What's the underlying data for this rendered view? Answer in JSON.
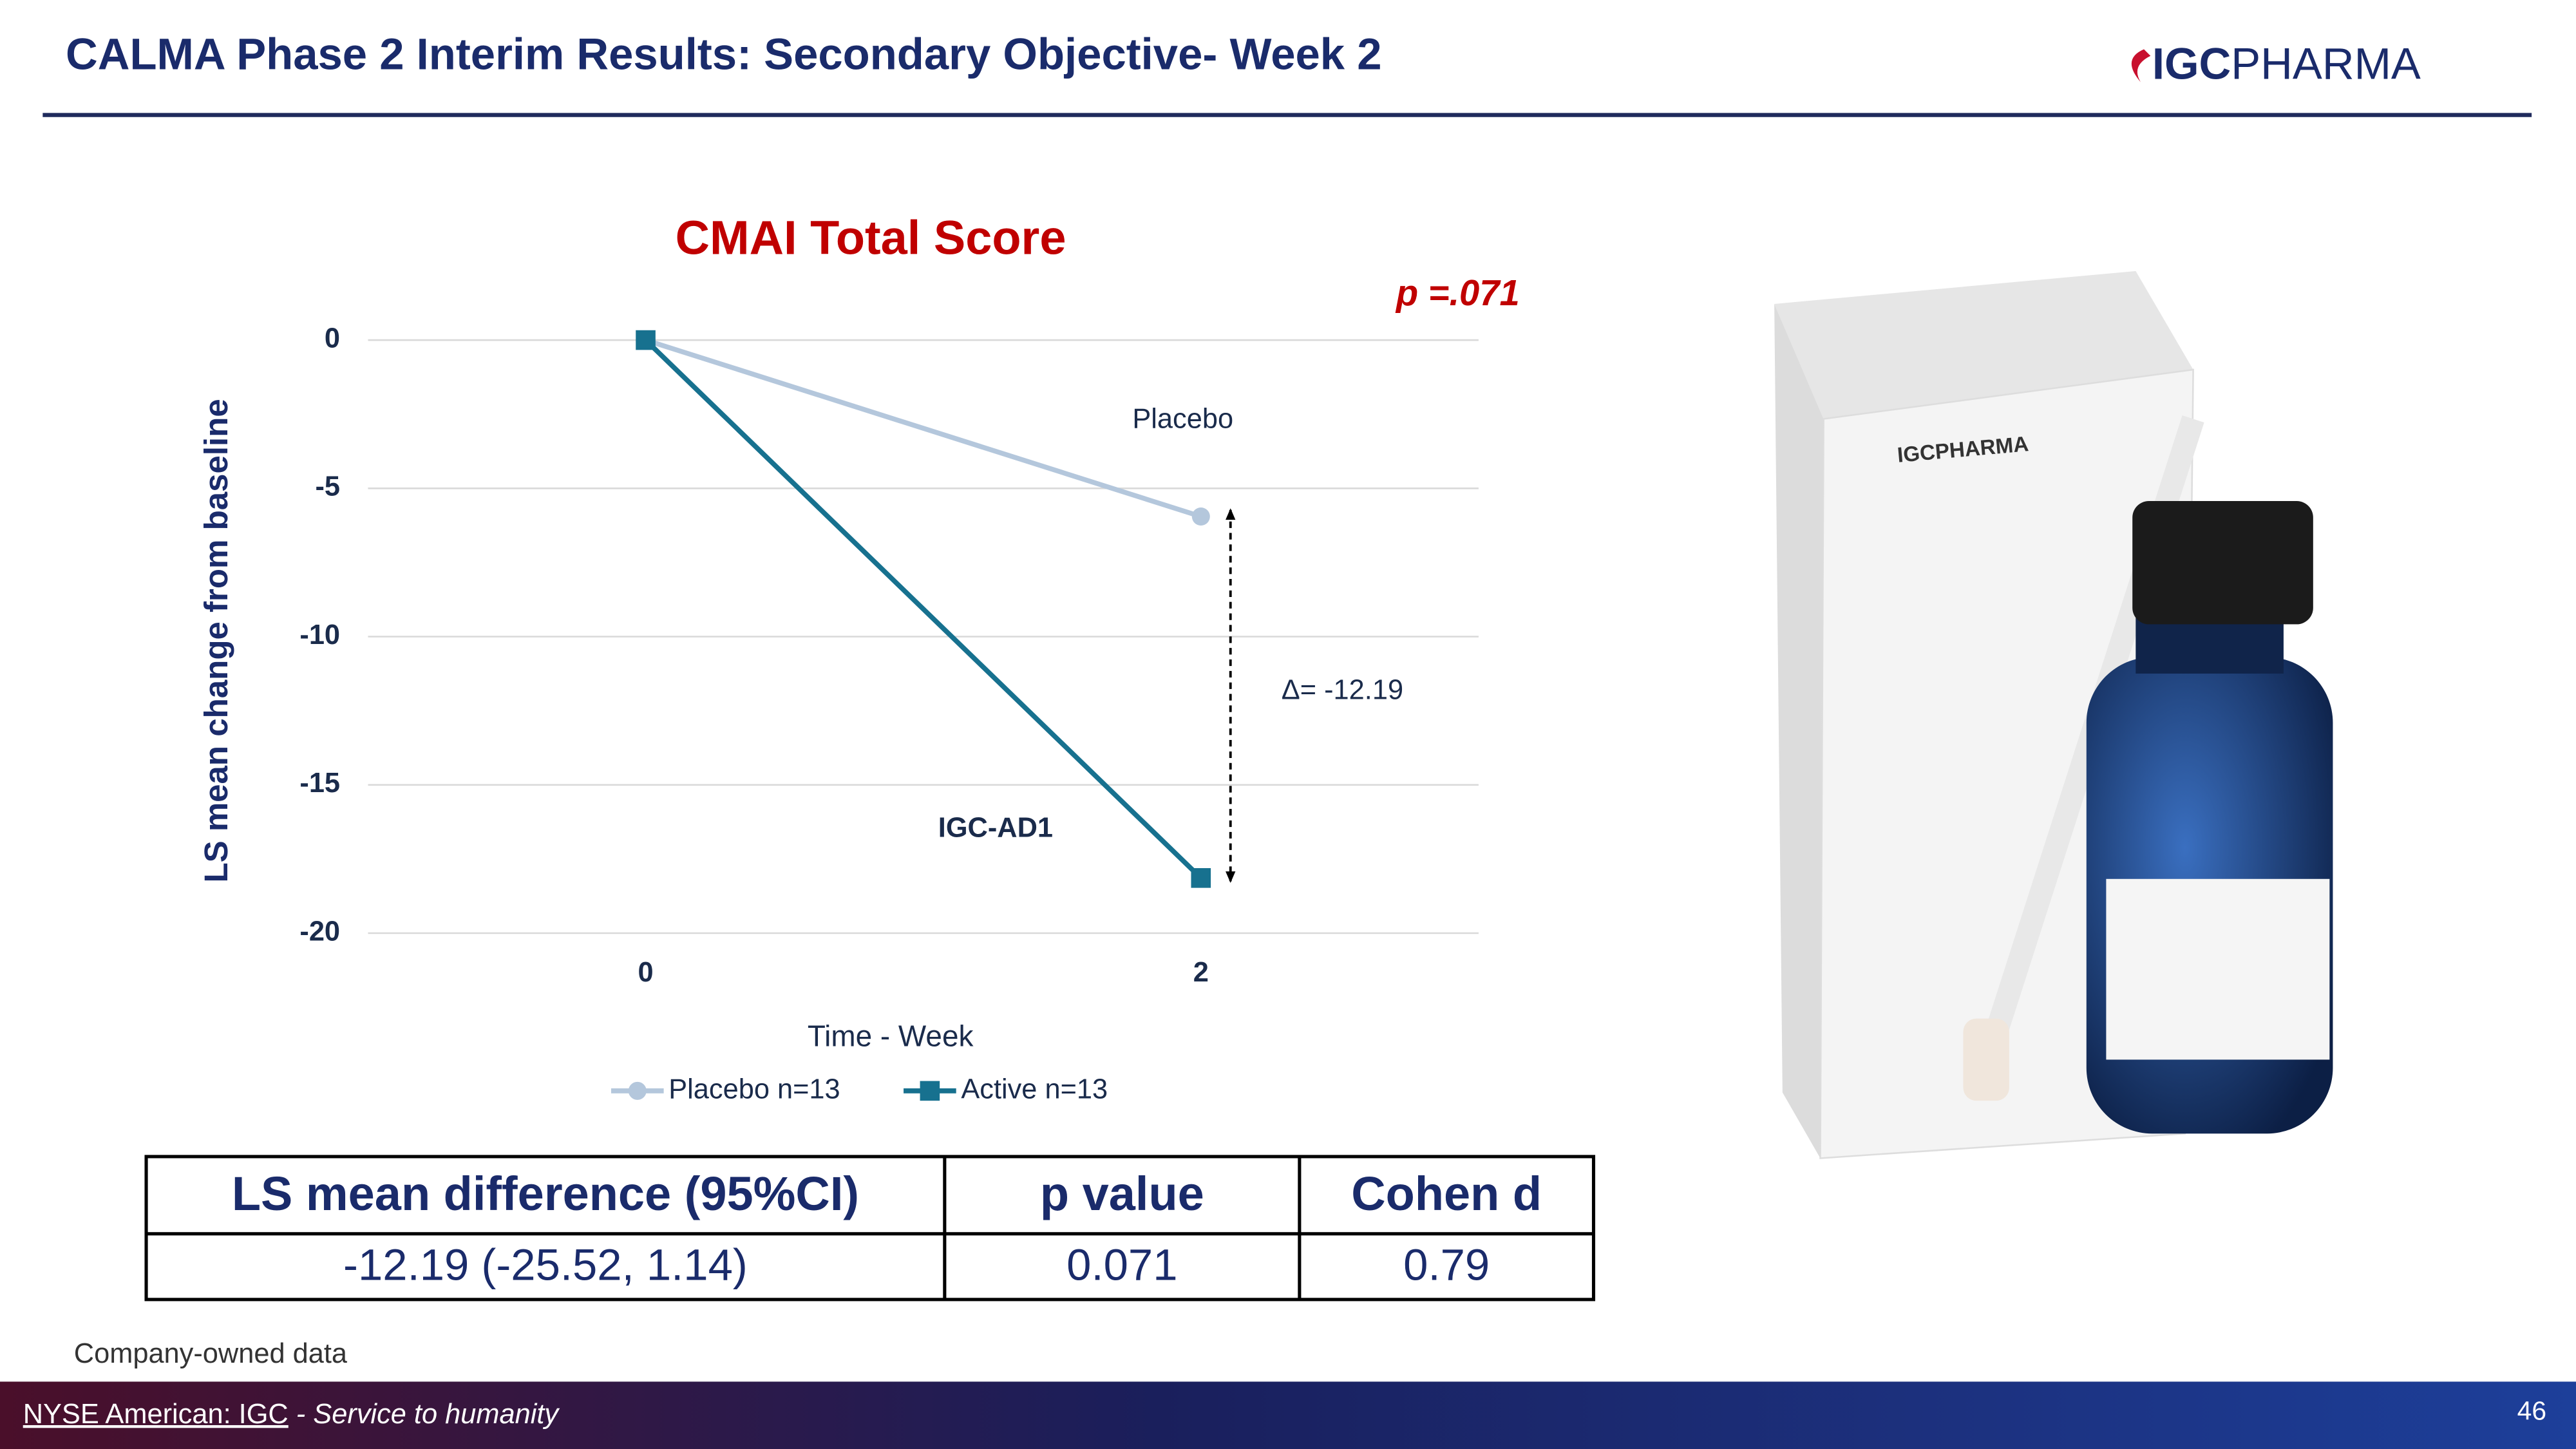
{
  "header": {
    "title": "CALMA Phase 2 Interim Results: Secondary Objective- Week 2",
    "logo_bold": "IGC",
    "logo_rest": "PHARMA"
  },
  "chart_data": {
    "type": "line",
    "title": "CMAI Total Score",
    "x_label": "Time - Week",
    "y_label": "LS mean change from baseline",
    "x": [
      0,
      2
    ],
    "xlim": [
      -1,
      3
    ],
    "xticks": [
      0,
      2
    ],
    "ylim": [
      -20,
      0
    ],
    "yticks": [
      0,
      -5,
      -10,
      -15,
      -20
    ],
    "grid": true,
    "series": [
      {
        "name": "Placebo n=13",
        "color": "#b4c7dc",
        "marker": "circle",
        "values": [
          0,
          -5.95
        ]
      },
      {
        "name": "Active n=13",
        "color": "#17718f",
        "marker": "square",
        "values": [
          0,
          -18.14
        ]
      }
    ],
    "annotations": {
      "p": "p =.071",
      "placebo": "Placebo",
      "active": "IGC-AD1",
      "delta": "Δ= -12.19"
    },
    "legend": "bottom"
  },
  "table": {
    "header": [
      "LS mean difference (95%CI)",
      "p value",
      "Cohen d"
    ],
    "rows": [
      [
        "-12.19 (-25.52, 1.14)",
        "0.071",
        "0.79"
      ]
    ]
  },
  "product_image": {
    "box_brand": "IGCPHARMA"
  },
  "note": "Company-owned data",
  "footer": {
    "exchange": "NYSE American:  IGC",
    "tagline": " - Service to humanity",
    "page": "46"
  }
}
